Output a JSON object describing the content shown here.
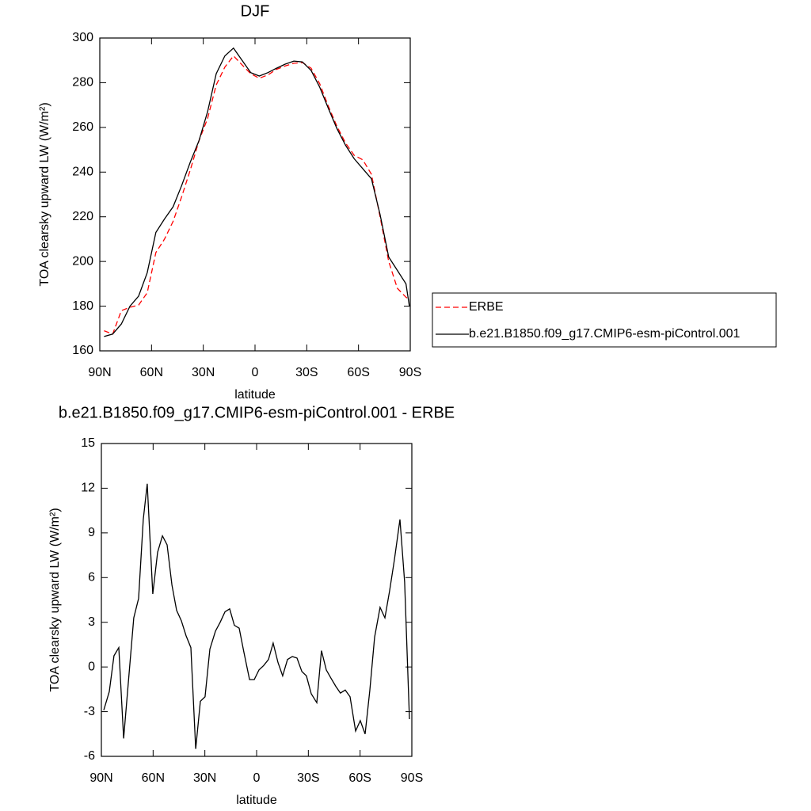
{
  "chart_data": [
    {
      "type": "line",
      "title": "DJF",
      "xlabel": "latitude",
      "ylabel": "TOA clearsky upward LW (W/m²)",
      "x": [
        87.5,
        82.5,
        77.5,
        72.5,
        67.5,
        62.5,
        57.5,
        52.5,
        47.5,
        42.5,
        37.5,
        32.5,
        27.5,
        22.5,
        17.5,
        12.5,
        7.5,
        2.5,
        -2.5,
        -7.5,
        -12.5,
        -17.5,
        -22.5,
        -27.5,
        -32.5,
        -37.5,
        -42.5,
        -47.5,
        -52.5,
        -57.5,
        -62.5,
        -67.5,
        -72.5,
        -77.5,
        -82.5,
        -87.5,
        -89.5
      ],
      "series": [
        {
          "name": "ERBE",
          "color": "#ff0000",
          "dash": "dashed",
          "values": [
            169,
            167.5,
            178,
            179.5,
            180.5,
            186,
            204,
            210,
            218,
            229,
            241,
            254,
            264,
            279,
            287,
            292,
            288,
            284,
            282,
            283.5,
            286,
            287.5,
            288.7,
            289,
            286.5,
            279.5,
            269.5,
            260.5,
            253,
            247.5,
            245.5,
            239,
            220,
            200,
            188,
            184,
            183
          ]
        },
        {
          "name": "b.e21.B1850.f09_g17.CMIP6-esm-piControl.001",
          "color": "#000000",
          "dash": "solid",
          "values": [
            166.4,
            167.5,
            172,
            180,
            184.5,
            195,
            213,
            219,
            224.5,
            234,
            244.5,
            254,
            267,
            284,
            292,
            295.5,
            290,
            284.5,
            283,
            284.5,
            286.5,
            288.3,
            289.7,
            289.3,
            285.5,
            278,
            268.5,
            259.5,
            252,
            246,
            241.5,
            237,
            221,
            202,
            196,
            190,
            180
          ]
        }
      ],
      "xlim": [
        90,
        -90
      ],
      "xticks": [
        {
          "value": 90,
          "label": "90N"
        },
        {
          "value": 60,
          "label": "60N"
        },
        {
          "value": 30,
          "label": "30N"
        },
        0,
        {
          "value": -30,
          "label": "30S"
        },
        {
          "value": -60,
          "label": "60S"
        },
        {
          "value": -90,
          "label": "90S"
        }
      ],
      "ylim": [
        160,
        300
      ],
      "yticks": [
        160,
        180,
        200,
        220,
        240,
        260,
        280,
        300
      ],
      "legend": "right"
    },
    {
      "type": "line",
      "title": "b.e21.B1850.f09_g17.CMIP6-esm-piControl.001 - ERBE",
      "xlabel": "latitude",
      "ylabel": "TOA clearsky upward LW (W/m²)",
      "x": [
        88.6,
        85.4,
        82.7,
        79.9,
        77.1,
        71.2,
        68.4,
        65.7,
        63.4,
        60.2,
        57.4,
        54.6,
        51.9,
        49.1,
        46.4,
        43.6,
        40.9,
        38.1,
        35.3,
        32.6,
        29.9,
        27.1,
        23.9,
        21.1,
        18.3,
        15.6,
        12.9,
        10.1,
        7.4,
        4.1,
        1.4,
        -1.4,
        -4.1,
        -6.9,
        -9.6,
        -12.4,
        -15.1,
        -17.9,
        -20.7,
        -23.4,
        -26.2,
        -28.9,
        -31.7,
        -34.9,
        -37.6,
        -40.4,
        -43.1,
        -45.9,
        -48.6,
        -51.4,
        -54.2,
        -57.4,
        -60.1,
        -62.9,
        -65.6,
        -68.4,
        -71.6,
        -74.4,
        -77.1,
        -79.9,
        -83.1,
        -85.8,
        -88.6
      ],
      "values": [
        -2.9,
        -1.65,
        0.75,
        1.3,
        -4.8,
        3.3,
        4.6,
        9.9,
        12.3,
        4.9,
        7.7,
        8.8,
        8.2,
        5.5,
        3.8,
        3.1,
        2.1,
        1.3,
        -5.5,
        -2.3,
        -2.0,
        1.2,
        2.4,
        3.0,
        3.7,
        3.9,
        2.8,
        2.6,
        1.0,
        -0.85,
        -0.85,
        -0.2,
        0.1,
        0.5,
        1.6,
        0.3,
        -0.6,
        0.5,
        0.7,
        0.6,
        -0.3,
        -0.6,
        -1.8,
        -2.4,
        1.1,
        -0.2,
        -0.75,
        -1.3,
        -1.75,
        -1.55,
        -2.0,
        -4.3,
        -3.6,
        -4.5,
        -1.6,
        2.0,
        4.0,
        3.3,
        5.1,
        7.2,
        9.9,
        5.7,
        -3.5
      ],
      "color": "#000000",
      "xlim": [
        90,
        -90
      ],
      "xticks": [
        {
          "value": 90,
          "label": "90N"
        },
        {
          "value": 60,
          "label": "60N"
        },
        {
          "value": 30,
          "label": "30N"
        },
        0,
        {
          "value": -30,
          "label": "30S"
        },
        {
          "value": -60,
          "label": "60S"
        },
        {
          "value": -90,
          "label": "90S"
        }
      ],
      "ylim": [
        -6,
        15
      ],
      "yticks": [
        -6,
        -3,
        0,
        3,
        6,
        9,
        12,
        15
      ]
    }
  ]
}
